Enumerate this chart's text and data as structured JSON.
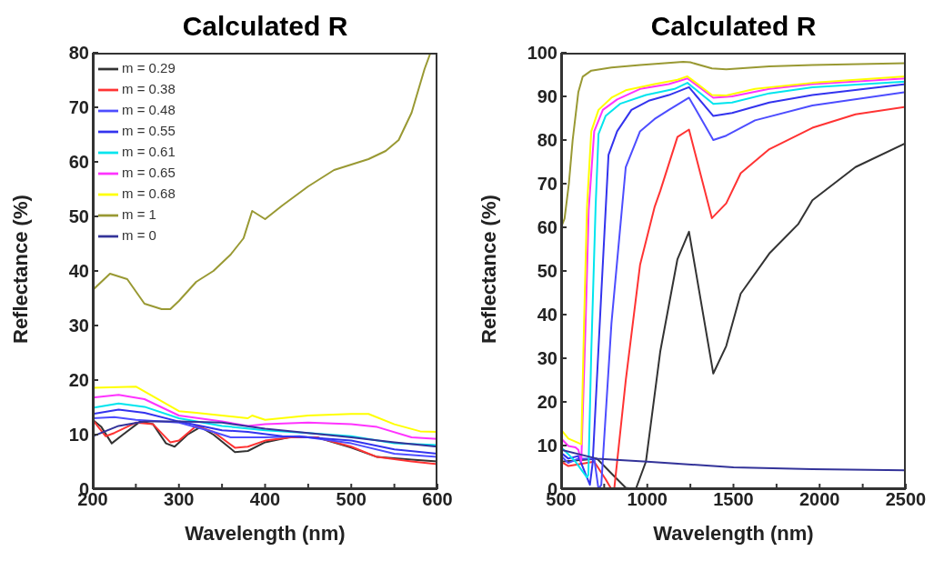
{
  "chart_data": [
    {
      "type": "line",
      "title": "Calculated R",
      "xlabel": "Wavelength (nm)",
      "ylabel": "Reflectance  (%)",
      "xlim": [
        200,
        600
      ],
      "ylim": [
        0,
        80
      ],
      "xticks": [
        200,
        {
          "value": 250,
          "label": null
        },
        300,
        {
          "value": 350,
          "label": null
        },
        400,
        {
          "value": 450,
          "label": null
        },
        500,
        {
          "value": 550,
          "label": null
        },
        600
      ],
      "yticks": [
        0,
        10,
        20,
        30,
        40,
        50,
        60,
        70,
        80
      ],
      "grid": false,
      "legend": "top left",
      "marker": "none",
      "line_style": "solid",
      "series": [
        {
          "name": "m = 0.29",
          "color": "#333333",
          "x": [
            200,
            210,
            222,
            235,
            255,
            270,
            285,
            295,
            310,
            325,
            340,
            365,
            380,
            400,
            430,
            460,
            500,
            530,
            570,
            600
          ],
          "values": [
            12.7,
            11.4,
            8.4,
            10,
            12.4,
            11.9,
            8.4,
            7.8,
            10,
            11.4,
            10,
            6.8,
            7,
            8.6,
            9.6,
            9.5,
            7.6,
            5.9,
            5.4,
            5.1
          ]
        },
        {
          "name": "m = 0.38",
          "color": "#ff3333",
          "x": [
            200,
            215,
            225,
            250,
            270,
            290,
            300,
            320,
            340,
            365,
            380,
            400,
            430,
            460,
            500,
            530,
            570,
            600
          ],
          "values": [
            12.7,
            9.7,
            10.3,
            12.2,
            11.9,
            8.6,
            8.9,
            11.6,
            10.5,
            7.6,
            7.8,
            8.9,
            9.5,
            9.5,
            7.8,
            5.9,
            5.1,
            4.6
          ]
        },
        {
          "name": "m = 0.48",
          "color": "#4d4dff",
          "x": [
            200,
            225,
            250,
            280,
            300,
            340,
            360,
            400,
            440,
            500,
            550,
            600
          ],
          "values": [
            13,
            13.2,
            12.7,
            12.4,
            12.2,
            10.5,
            9.5,
            9.5,
            9.7,
            8.4,
            6.5,
            5.9
          ]
        },
        {
          "name": "m = 0.55",
          "color": "#3333ee",
          "x": [
            200,
            230,
            260,
            300,
            350,
            380,
            420,
            450,
            500,
            550,
            600
          ],
          "values": [
            13.8,
            14.6,
            14,
            12.4,
            10.8,
            10.5,
            9.7,
            9.5,
            8.9,
            7.3,
            6.5
          ]
        },
        {
          "name": "m = 0.61",
          "color": "#00e5ee",
          "x": [
            200,
            230,
            260,
            300,
            350,
            400,
            450,
            500,
            550,
            600
          ],
          "values": [
            14.9,
            15.7,
            15.1,
            13,
            11.6,
            10.8,
            10.3,
            9.7,
            8.4,
            8.1
          ]
        },
        {
          "name": "m = 0.65",
          "color": "#ff33ff",
          "x": [
            200,
            230,
            260,
            300,
            350,
            380,
            400,
            450,
            500,
            530,
            570,
            600
          ],
          "values": [
            16.8,
            17.3,
            16.5,
            13.5,
            12.4,
            11.6,
            11.9,
            12.2,
            11.9,
            11.4,
            9.5,
            9.2
          ]
        },
        {
          "name": "m = 0.68",
          "color": "#ffff00",
          "x": [
            200,
            250,
            300,
            320,
            350,
            380,
            385,
            400,
            450,
            500,
            520,
            550,
            580,
            600
          ],
          "values": [
            18.6,
            18.8,
            14.3,
            14,
            13.5,
            13,
            13.5,
            12.7,
            13.5,
            13.8,
            13.8,
            11.9,
            10.6,
            10.5
          ]
        },
        {
          "name": "m = 1",
          "color": "#999933",
          "x": [
            200,
            220,
            240,
            260,
            280,
            290,
            300,
            320,
            340,
            360,
            375,
            385,
            390,
            400,
            420,
            450,
            480,
            500,
            520,
            540,
            555,
            570,
            585,
            592
          ],
          "values": [
            36.5,
            39.5,
            38.5,
            34,
            33,
            33,
            34.5,
            38,
            40,
            43,
            46,
            51,
            50.5,
            49.5,
            52,
            55.5,
            58.5,
            59.5,
            60.5,
            62,
            64,
            69,
            77,
            80
          ]
        },
        {
          "name": "m = 0",
          "color": "#333399",
          "x": [
            200,
            230,
            260,
            300,
            350,
            400,
            450,
            500,
            550,
            600
          ],
          "values": [
            9.7,
            11.6,
            12.4,
            12.4,
            12.2,
            11.1,
            10.3,
            9.5,
            8.6,
            7.8
          ]
        }
      ]
    },
    {
      "type": "line",
      "title": "Calculated R",
      "xlabel": "Wavelength (nm)",
      "ylabel": "Reflectance  (%)",
      "xlim": [
        500,
        2500
      ],
      "ylim": [
        0,
        100
      ],
      "xticks": [
        500,
        {
          "value": 750,
          "label": null
        },
        1000,
        {
          "value": 1250,
          "label": null
        },
        1500,
        {
          "value": 1750,
          "label": null
        },
        2000,
        {
          "value": 2250,
          "label": null
        },
        2500
      ],
      "yticks": [
        0,
        10,
        20,
        30,
        40,
        50,
        60,
        70,
        80,
        90,
        100
      ],
      "grid": false,
      "marker": "none",
      "line_style": "solid",
      "series": [
        {
          "color": "#333333",
          "x": [
            500,
            708,
            792,
            875,
            933,
            992,
            1075,
            1175,
            1242,
            1383,
            1458,
            1542,
            1708,
            1875,
            1958,
            2208,
            2500
          ],
          "values": [
            6.3,
            7,
            3.6,
            0.3,
            0,
            6.3,
            31.5,
            52.7,
            59,
            26.5,
            32.8,
            44.8,
            54,
            60.7,
            66.2,
            73.8,
            79.3
          ]
        },
        {
          "color": "#ff3333",
          "x": [
            500,
            542,
            692,
            758,
            792,
            808,
            875,
            958,
            1042,
            1075,
            1175,
            1242,
            1375,
            1458,
            1542,
            1708,
            1958,
            2208,
            2500
          ],
          "values": [
            6.3,
            5.3,
            6.3,
            2.3,
            0,
            0,
            24.9,
            51.4,
            64.6,
            68.3,
            80.7,
            82.4,
            62.1,
            65.5,
            72.4,
            77.9,
            82.8,
            85.9,
            87.6
          ]
        },
        {
          "color": "#4d4dff",
          "x": [
            500,
            542,
            600,
            692,
            717,
            733,
            792,
            875,
            958,
            1042,
            1125,
            1242,
            1383,
            1458,
            1625,
            1958,
            2500
          ],
          "values": [
            7.6,
            6,
            7,
            7,
            0,
            1,
            38,
            73.8,
            82,
            84.8,
            86.9,
            89.7,
            80,
            81,
            84.5,
            87.9,
            91
          ]
        },
        {
          "color": "#3333ee",
          "x": [
            500,
            542,
            600,
            667,
            683,
            733,
            775,
            825,
            908,
            1008,
            1125,
            1242,
            1383,
            1492,
            1708,
            1958,
            2500
          ],
          "values": [
            8.3,
            7,
            7.6,
            1,
            6,
            44.8,
            76.6,
            82,
            86.9,
            89,
            90.3,
            92.1,
            85.5,
            86.2,
            88.6,
            90.3,
            92.8
          ]
        },
        {
          "color": "#00e5ee",
          "x": [
            500,
            542,
            583,
            650,
            658,
            675,
            700,
            717,
            758,
            842,
            992,
            1158,
            1233,
            1383,
            1492,
            1708,
            1958,
            2500
          ],
          "values": [
            9.6,
            8,
            6.3,
            2.7,
            3.3,
            31.5,
            64.6,
            81.4,
            85.5,
            88.3,
            90.3,
            91.7,
            93.1,
            88.3,
            88.6,
            90.7,
            92.1,
            93.4
          ]
        },
        {
          "color": "#ff33ff",
          "x": [
            500,
            542,
            583,
            600,
            617,
            642,
            660,
            692,
            742,
            825,
            958,
            1125,
            1233,
            1383,
            1492,
            1708,
            1958,
            2500
          ],
          "values": [
            11.6,
            9.9,
            9.6,
            9,
            6.3,
            38,
            64,
            82,
            86.9,
            89.3,
            91.7,
            92.8,
            94.1,
            89.7,
            90,
            91.7,
            92.8,
            94.1
          ]
        },
        {
          "color": "#ffff00",
          "x": [
            500,
            542,
            600,
            617,
            633,
            650,
            675,
            717,
            792,
            875,
            1042,
            1175,
            1233,
            1375,
            1458,
            1625,
            1958,
            2500
          ],
          "values": [
            13.6,
            11.6,
            10.6,
            10.3,
            38,
            64.6,
            82,
            86.9,
            89.7,
            91.4,
            92.8,
            93.8,
            94.6,
            90.3,
            90.2,
            91.7,
            93.1,
            94.6
          ]
        },
        {
          "color": "#999933",
          "x": [
            500,
            520,
            545,
            567,
            600,
            625,
            675,
            792,
            958,
            1208,
            1250,
            1375,
            1458,
            1708,
            1958,
            2500
          ],
          "values": [
            60,
            62,
            70,
            80,
            91,
            94.5,
            95.9,
            96.6,
            97.2,
            97.9,
            97.8,
            96.4,
            96.2,
            96.9,
            97.2,
            97.6
          ]
        },
        {
          "color": "#333399",
          "x": [
            500,
            708,
            1000,
            1500,
            1958,
            2500
          ],
          "values": [
            9,
            7,
            6.3,
            5,
            4.6,
            4.3
          ]
        }
      ]
    }
  ]
}
